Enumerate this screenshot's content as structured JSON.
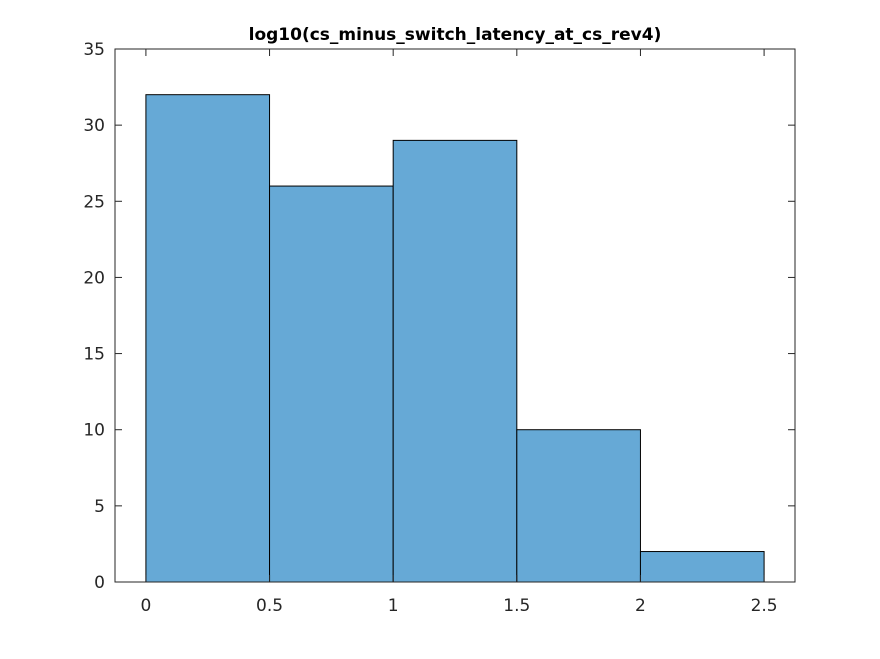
{
  "chart_data": {
    "type": "bar",
    "title": "log10(cs_minus_switch_latency_at_cs_rev4)",
    "xlabel": "",
    "ylabel": "",
    "bin_edges": [
      0,
      0.5,
      1,
      1.5,
      2,
      2.5
    ],
    "values": [
      32,
      26,
      29,
      10,
      2
    ],
    "xlim": [
      -0.125,
      2.625
    ],
    "ylim": [
      0,
      35
    ],
    "xticks": [
      0,
      0.5,
      1,
      1.5,
      2,
      2.5
    ],
    "xtick_labels": [
      "0",
      "0.5",
      "1",
      "1.5",
      "2",
      "2.5"
    ],
    "yticks": [
      0,
      5,
      10,
      15,
      20,
      25,
      30,
      35
    ],
    "ytick_labels": [
      "0",
      "5",
      "10",
      "15",
      "20",
      "25",
      "30",
      "35"
    ],
    "bar_color": "#66A9D6",
    "bar_edge_color": "#000000",
    "grid": false,
    "box": true
  }
}
